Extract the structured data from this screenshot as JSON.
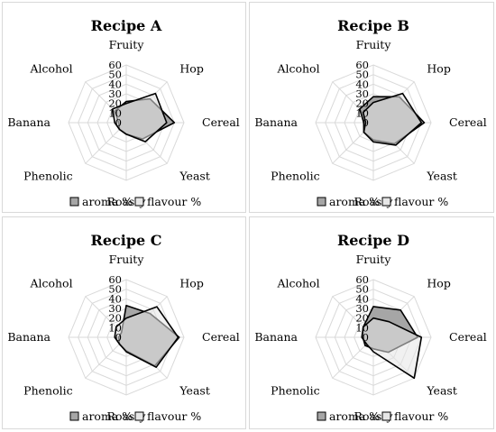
{
  "style": {
    "aroma_fill": "#a6a6a6",
    "flavour_fill": "#e6e6e6",
    "series_stroke": "#000000",
    "grid_color": "#d9d9d9"
  },
  "chart_data": [
    {
      "type": "radar",
      "title": "Recipe A",
      "axes": [
        "Fruity",
        "Hop",
        "Cereal",
        "Yeast",
        "Roasty",
        "Phenolic",
        "Banana",
        "Alcohol"
      ],
      "ticks": [
        "0",
        "10",
        "20",
        "30",
        "40",
        "50",
        "60"
      ],
      "rlim": [
        0,
        60
      ],
      "grid": true,
      "legend": "bottom",
      "series": [
        {
          "name": "aroma %",
          "values": [
            22,
            35,
            50,
            24,
            12,
            10,
            8,
            17
          ]
        },
        {
          "name": "flavour %",
          "values": [
            20,
            43,
            42,
            28,
            12,
            10,
            12,
            20
          ]
        }
      ]
    },
    {
      "type": "radar",
      "title": "Recipe B",
      "axes": [
        "Fruity",
        "Hop",
        "Cereal",
        "Yeast",
        "Roasty",
        "Phenolic",
        "Banana",
        "Alcohol"
      ],
      "ticks": [
        "0",
        "10",
        "20",
        "30",
        "40",
        "50",
        "60"
      ],
      "rlim": [
        0,
        60
      ],
      "grid": true,
      "legend": "bottom",
      "series": [
        {
          "name": "aroma %",
          "values": [
            27,
            38,
            53,
            31,
            18,
            14,
            10,
            20
          ]
        },
        {
          "name": "flavour %",
          "values": [
            21,
            43,
            50,
            33,
            20,
            14,
            8,
            15
          ]
        }
      ]
    },
    {
      "type": "radar",
      "title": "Recipe C",
      "axes": [
        "Fruity",
        "Hop",
        "Cereal",
        "Yeast",
        "Roasty",
        "Phenolic",
        "Banana",
        "Alcohol"
      ],
      "ticks": [
        "0",
        "10",
        "20",
        "30",
        "40",
        "50",
        "60"
      ],
      "rlim": [
        0,
        60
      ],
      "grid": true,
      "legend": "bottom",
      "series": [
        {
          "name": "aroma %",
          "values": [
            33,
            35,
            55,
            42,
            14,
            10,
            8,
            7
          ]
        },
        {
          "name": "flavour %",
          "values": [
            20,
            45,
            54,
            44,
            15,
            10,
            12,
            15
          ]
        }
      ]
    },
    {
      "type": "radar",
      "title": "Recipe D",
      "axes": [
        "Fruity",
        "Hop",
        "Cereal",
        "Yeast",
        "Roasty",
        "Phenolic",
        "Banana",
        "Alcohol"
      ],
      "ticks": [
        "0",
        "10",
        "20",
        "30",
        "40",
        "50",
        "60"
      ],
      "rlim": [
        0,
        60
      ],
      "grid": true,
      "legend": "bottom",
      "series": [
        {
          "name": "aroma %",
          "values": [
            32,
            40,
            46,
            22,
            12,
            12,
            11,
            15
          ]
        },
        {
          "name": "flavour %",
          "values": [
            20,
            23,
            50,
            60,
            15,
            10,
            12,
            15
          ]
        }
      ]
    }
  ]
}
